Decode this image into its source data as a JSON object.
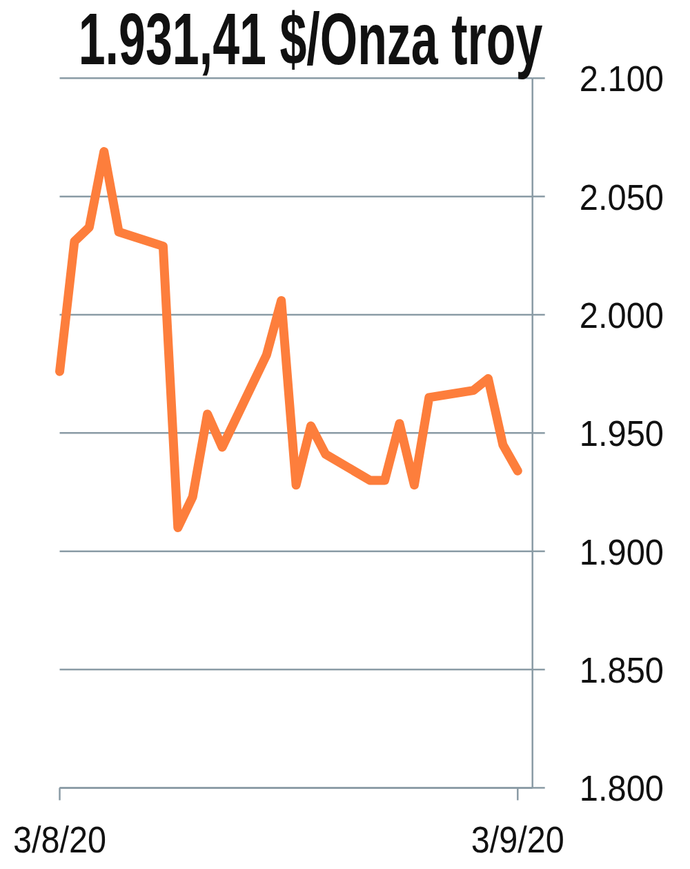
{
  "chart_data": {
    "type": "line",
    "title": "1.931,41 $/Onza troy",
    "x": [
      "2020-08-03",
      "2020-08-04",
      "2020-08-05",
      "2020-08-06",
      "2020-08-07",
      "2020-08-10",
      "2020-08-11",
      "2020-08-12",
      "2020-08-13",
      "2020-08-14",
      "2020-08-17",
      "2020-08-18",
      "2020-08-19",
      "2020-08-20",
      "2020-08-21",
      "2020-08-24",
      "2020-08-25",
      "2020-08-26",
      "2020-08-27",
      "2020-08-28",
      "2020-08-31",
      "2020-09-01",
      "2020-09-02",
      "2020-09-03"
    ],
    "series": [
      {
        "color": "#fd7e3c",
        "values": [
          1976,
          2031,
          2037,
          2069,
          2035,
          2029,
          1910,
          1923,
          1958,
          1944,
          1983,
          2006,
          1928,
          1953,
          1941,
          1930,
          1930,
          1954,
          1928,
          1965,
          1968,
          1973,
          1945,
          1934
        ]
      }
    ],
    "xlim": [
      "2020-08-03",
      "2020-09-04"
    ],
    "xticks": [
      {
        "value": "2020-08-03",
        "label": "3/8/20"
      },
      {
        "value": "2020-09-03",
        "label": "3/9/20"
      }
    ],
    "ylim": [
      1800,
      2100
    ],
    "yticks": [
      {
        "value": 1800,
        "label": "1.800"
      },
      {
        "value": 1850,
        "label": "1.850"
      },
      {
        "value": 1900,
        "label": "1.900"
      },
      {
        "value": 1950,
        "label": "1.950"
      },
      {
        "value": 2000,
        "label": "2.000"
      },
      {
        "value": 2050,
        "label": "2.050"
      },
      {
        "value": 2100,
        "label": "2.100"
      }
    ],
    "grid": "y",
    "line_style": "solid"
  }
}
